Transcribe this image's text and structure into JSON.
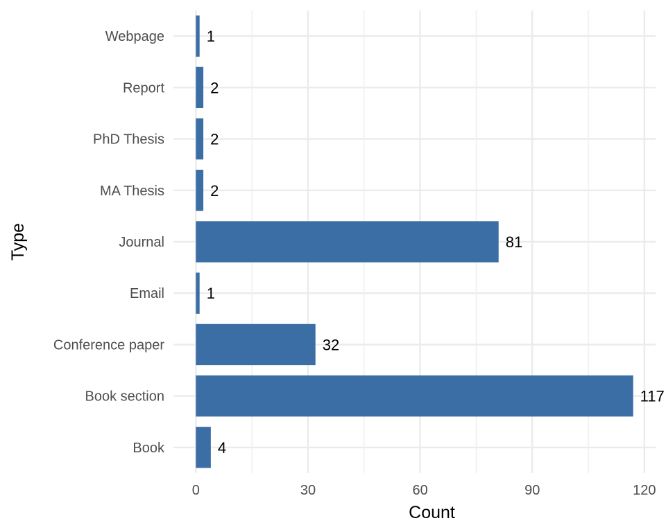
{
  "chart_data": {
    "type": "bar",
    "orientation": "horizontal",
    "categories": [
      "Book",
      "Book section",
      "Conference paper",
      "Email",
      "Journal",
      "MA Thesis",
      "PhD Thesis",
      "Report",
      "Webpage"
    ],
    "values": [
      4,
      117,
      32,
      1,
      81,
      2,
      2,
      2,
      1
    ],
    "data_labels": [
      "4",
      "117",
      "32",
      "1",
      "81",
      "2",
      "2",
      "2",
      "1"
    ],
    "xlabel": "Count",
    "ylabel": "Type",
    "xlim": [
      -6,
      123
    ],
    "xticks": [
      0,
      30,
      60,
      90,
      120
    ],
    "grid": true,
    "bar_color": "#3a6ea5",
    "grid_color": "#ebebeb"
  }
}
